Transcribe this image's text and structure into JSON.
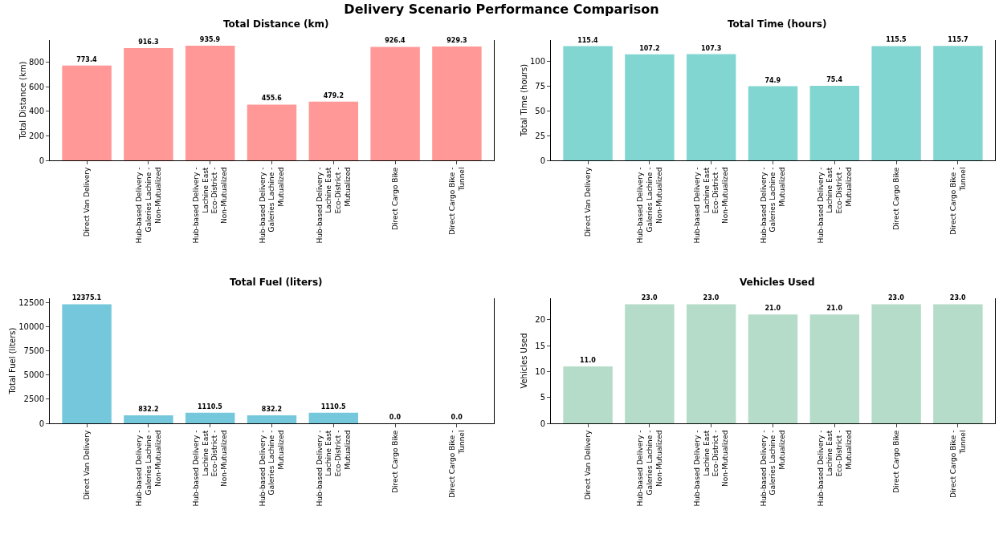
{
  "chart_data": [
    {
      "type": "bar",
      "title": "Total Distance (km)",
      "ylabel": "Total Distance (km)",
      "annotations": [
        "Delivery Scenario Performance Comparison"
      ],
      "categories": [
        "Direct Van Delivery",
        "Hub-based Delivery - Galeries Lachine - Non-Mutualized",
        "Hub-based Delivery - Lachine East Eco-District - Non-Mutualized",
        "Hub-based Delivery - Galeries Lachine - Mutualized",
        "Hub-based Delivery - Lachine East Eco-District - Mutualized",
        "Direct Cargo Bike",
        "Direct Cargo Bike - Tunnel"
      ],
      "values": [
        773.4,
        916.3,
        935.9,
        455.6,
        479.2,
        926.4,
        929.3
      ],
      "value_labels": [
        "773.4",
        "916.3",
        "935.9",
        "455.6",
        "479.2",
        "926.4",
        "929.3"
      ],
      "color": "#ff9896",
      "ylim": [
        0,
        982
      ],
      "yticks": [
        0,
        200,
        400,
        600,
        800
      ],
      "grid": false
    },
    {
      "type": "bar",
      "title": "Total Time (hours)",
      "ylabel": "Total Time (hours)",
      "categories": [
        "Direct Van Delivery",
        "Hub-based Delivery - Galeries Lachine - Non-Mutualized",
        "Hub-based Delivery - Lachine East Eco-District - Non-Mutualized",
        "Hub-based Delivery - Galeries Lachine - Mutualized",
        "Hub-based Delivery - Lachine East Eco-District - Mutualized",
        "Direct Cargo Bike",
        "Direct Cargo Bike - Tunnel"
      ],
      "values": [
        115.4,
        107.2,
        107.3,
        74.9,
        75.4,
        115.5,
        115.7
      ],
      "value_labels": [
        "115.4",
        "107.2",
        "107.3",
        "74.9",
        "75.4",
        "115.5",
        "115.7"
      ],
      "color": "#82d6d1",
      "ylim": [
        0,
        121.5
      ],
      "yticks": [
        0,
        25,
        50,
        75,
        100
      ],
      "grid": false
    },
    {
      "type": "bar",
      "title": "Total Fuel (liters)",
      "ylabel": "Total Fuel (liters)",
      "categories": [
        "Direct Van Delivery",
        "Hub-based Delivery - Galeries Lachine - Non-Mutualized",
        "Hub-based Delivery - Lachine East Eco-District - Non-Mutualized",
        "Hub-based Delivery - Galeries Lachine - Mutualized",
        "Hub-based Delivery - Lachine East Eco-District - Mutualized",
        "Direct Cargo Bike",
        "Direct Cargo Bike - Tunnel"
      ],
      "values": [
        12375.1,
        832.2,
        1110.5,
        832.2,
        1110.5,
        0.0,
        0.0
      ],
      "value_labels": [
        "12375.1",
        "832.2",
        "1110.5",
        "832.2",
        "1110.5",
        "0.0",
        "0.0"
      ],
      "color": "#75c8db",
      "ylim": [
        0,
        12994
      ],
      "yticks": [
        0,
        2500,
        5000,
        7500,
        10000,
        12500
      ],
      "grid": false
    },
    {
      "type": "bar",
      "title": "Vehicles Used",
      "ylabel": "Vehicles Used",
      "categories": [
        "Direct Van Delivery",
        "Hub-based Delivery - Galeries Lachine - Non-Mutualized",
        "Hub-based Delivery - Lachine East Eco-District - Non-Mutualized",
        "Hub-based Delivery - Galeries Lachine - Mutualized",
        "Hub-based Delivery - Lachine East Eco-District - Mutualized",
        "Direct Cargo Bike",
        "Direct Cargo Bike - Tunnel"
      ],
      "values": [
        11,
        23,
        23,
        21,
        21,
        23,
        23
      ],
      "value_labels": [
        "11.0",
        "23.0",
        "23.0",
        "21.0",
        "21.0",
        "23.0",
        "23.0"
      ],
      "color": "#b4dcc8",
      "ylim": [
        0,
        24.15
      ],
      "yticks": [
        0,
        5,
        10,
        15,
        20
      ],
      "grid": false
    }
  ]
}
